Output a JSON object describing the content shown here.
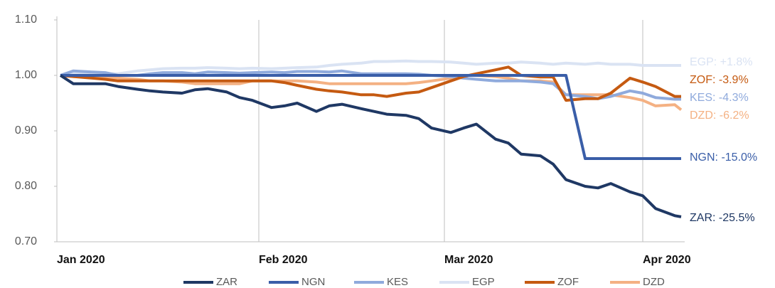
{
  "chart_data": {
    "type": "line",
    "x": [
      1,
      3,
      6,
      8,
      10,
      13,
      15,
      17,
      20,
      22,
      24,
      27,
      29,
      31,
      34,
      36,
      38,
      41,
      43,
      45,
      48,
      50,
      52,
      55,
      57,
      59,
      62,
      64,
      66,
      69,
      71,
      73,
      76,
      78,
      80,
      83,
      85,
      87,
      90,
      92,
      94,
      97,
      98
    ],
    "xlim": [
      1,
      98
    ],
    "xticks": [
      {
        "value": 1,
        "label": "Jan 2020"
      },
      {
        "value": 32,
        "label": "Feb 2020"
      },
      {
        "value": 61,
        "label": "Mar 2020"
      },
      {
        "value": 92,
        "label": "Apr 2020"
      }
    ],
    "ylim": [
      0.7,
      1.1
    ],
    "yticks": [
      {
        "value": 0.7,
        "label": "0.70"
      },
      {
        "value": 0.8,
        "label": "0.80"
      },
      {
        "value": 0.9,
        "label": "0.90"
      },
      {
        "value": 1.0,
        "label": "1.00"
      },
      {
        "value": 1.1,
        "label": "1.10"
      }
    ],
    "grid": "x",
    "legend": "bottom",
    "series": [
      {
        "name": "ZAR",
        "color": "#1f3864",
        "end_label": "ZAR: -25.5%",
        "values": [
          1.0,
          0.985,
          0.985,
          0.985,
          0.98,
          0.975,
          0.972,
          0.97,
          0.968,
          0.974,
          0.976,
          0.97,
          0.96,
          0.955,
          0.942,
          0.945,
          0.95,
          0.935,
          0.945,
          0.948,
          0.94,
          0.935,
          0.93,
          0.928,
          0.922,
          0.905,
          0.897,
          0.905,
          0.912,
          0.885,
          0.878,
          0.858,
          0.855,
          0.84,
          0.812,
          0.8,
          0.797,
          0.805,
          0.79,
          0.783,
          0.76,
          0.747,
          0.745
        ]
      },
      {
        "name": "NGN",
        "color": "#3a5ea8",
        "end_label": "NGN: -15.0%",
        "values": [
          1.0,
          1.0,
          1.0,
          1.0,
          1.0,
          1.0,
          1.0,
          1.0,
          1.0,
          1.0,
          1.0,
          1.0,
          1.0,
          1.0,
          1.0,
          1.0,
          1.0,
          1.0,
          1.0,
          1.0,
          1.0,
          1.0,
          1.0,
          1.0,
          1.0,
          1.0,
          1.0,
          1.0,
          1.0,
          1.0,
          1.0,
          1.0,
          1.0,
          1.0,
          1.0,
          0.85,
          0.85,
          0.85,
          0.85,
          0.85,
          0.85,
          0.85,
          0.85
        ]
      },
      {
        "name": "KES",
        "color": "#8faadc",
        "end_label": "KES: -4.3%",
        "values": [
          1.0,
          1.008,
          1.006,
          1.005,
          1.0,
          1.0,
          1.003,
          1.005,
          1.005,
          1.003,
          1.006,
          1.005,
          1.004,
          1.005,
          1.006,
          1.005,
          1.007,
          1.007,
          1.006,
          1.008,
          1.003,
          1.003,
          1.003,
          1.003,
          1.002,
          1.0,
          0.998,
          0.995,
          0.993,
          0.99,
          0.99,
          0.99,
          0.988,
          0.985,
          0.965,
          0.962,
          0.958,
          0.962,
          0.972,
          0.968,
          0.96,
          0.957,
          0.957
        ]
      },
      {
        "name": "EGP",
        "color": "#dae3f3",
        "end_label": "EGP: +1.8%",
        "values": [
          1.0,
          1.003,
          1.003,
          1.003,
          1.003,
          1.008,
          1.01,
          1.012,
          1.013,
          1.013,
          1.014,
          1.013,
          1.012,
          1.013,
          1.012,
          1.013,
          1.014,
          1.015,
          1.018,
          1.02,
          1.022,
          1.025,
          1.025,
          1.026,
          1.025,
          1.025,
          1.024,
          1.022,
          1.02,
          1.022,
          1.022,
          1.024,
          1.022,
          1.02,
          1.022,
          1.02,
          1.022,
          1.02,
          1.02,
          1.018,
          1.018,
          1.018,
          1.018
        ]
      },
      {
        "name": "ZOF",
        "color": "#c55a11",
        "end_label": "ZOF: -3.9%",
        "values": [
          1.0,
          0.998,
          0.995,
          0.993,
          0.99,
          0.99,
          0.99,
          0.99,
          0.99,
          0.99,
          0.99,
          0.99,
          0.99,
          0.99,
          0.99,
          0.987,
          0.982,
          0.975,
          0.972,
          0.97,
          0.965,
          0.965,
          0.962,
          0.968,
          0.97,
          0.978,
          0.99,
          0.998,
          1.003,
          1.01,
          1.015,
          1.0,
          0.997,
          0.997,
          0.955,
          0.958,
          0.958,
          0.968,
          0.995,
          0.988,
          0.98,
          0.962,
          0.962
        ]
      },
      {
        "name": "DZD",
        "color": "#f4b183",
        "end_label": "DZD: -6.2%",
        "values": [
          1.0,
          0.998,
          0.997,
          0.995,
          0.995,
          0.993,
          0.99,
          0.99,
          0.988,
          0.985,
          0.985,
          0.985,
          0.985,
          0.99,
          0.99,
          0.99,
          0.99,
          0.988,
          0.985,
          0.985,
          0.985,
          0.985,
          0.985,
          0.985,
          0.987,
          0.99,
          0.995,
          1.0,
          1.0,
          0.998,
          0.995,
          0.99,
          0.99,
          0.988,
          0.965,
          0.965,
          0.965,
          0.965,
          0.96,
          0.955,
          0.945,
          0.947,
          0.938
        ]
      }
    ]
  }
}
